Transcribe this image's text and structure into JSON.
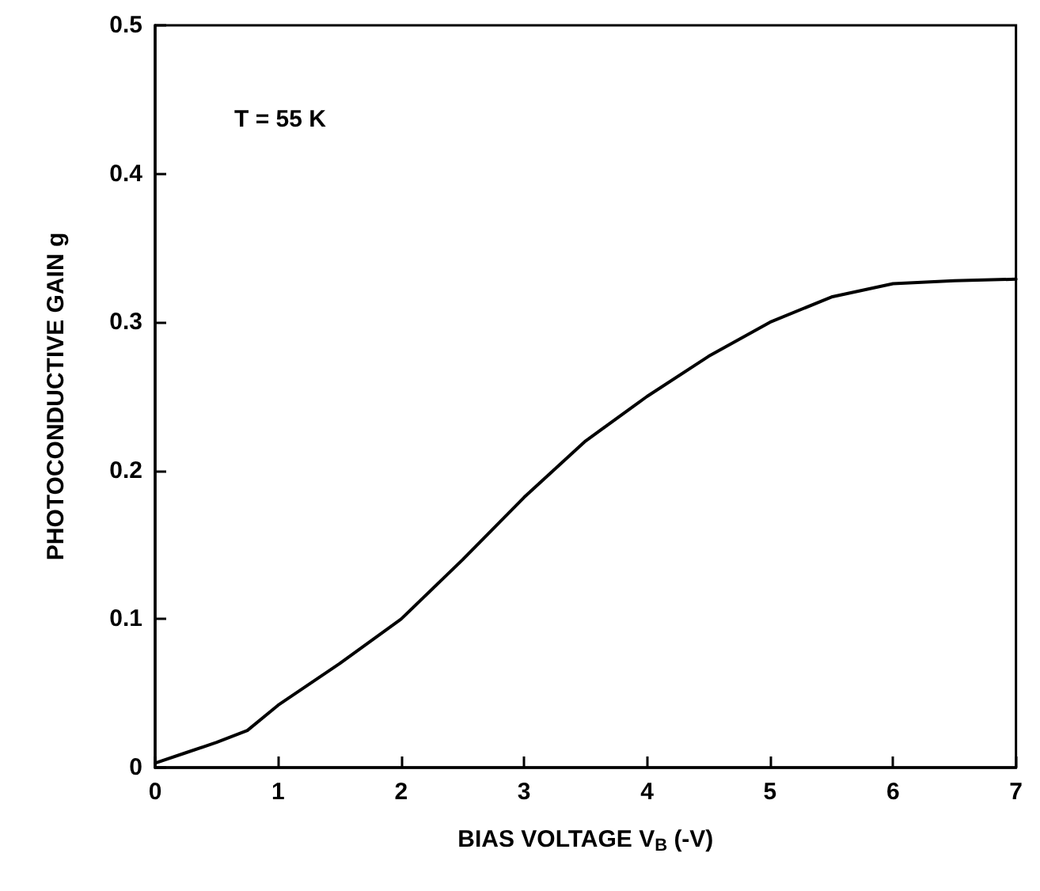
{
  "chart_data": {
    "type": "line",
    "xlabel": "BIAS VOLTAGE V$_{B}$ (-V)",
    "ylabel": "PHOTOCONDUCTIVE GAIN g",
    "annotations": [
      "T = 55 K"
    ],
    "x": [
      0,
      0.25,
      0.5,
      0.75,
      1,
      1.5,
      2,
      2.5,
      3,
      3.5,
      4,
      4.5,
      5,
      5.5,
      6,
      6.5,
      7
    ],
    "series": [
      {
        "color": "#000000",
        "values": [
          0.003,
          0.01,
          0.017,
          0.025,
          0.042,
          0.07,
          0.1,
          0.14,
          0.182,
          0.22,
          0.25,
          0.277,
          0.3,
          0.317,
          0.326,
          0.328,
          0.329
        ]
      }
    ],
    "xlim": [
      0,
      7
    ],
    "xticks": [
      0,
      1,
      2,
      3,
      4,
      5,
      6,
      7
    ],
    "ylim": [
      0,
      0.5
    ],
    "yticks": [
      0,
      0.1,
      0.2,
      0.3,
      0.4,
      0.5
    ],
    "grid": false,
    "marker": "none",
    "line_style": "solid"
  }
}
